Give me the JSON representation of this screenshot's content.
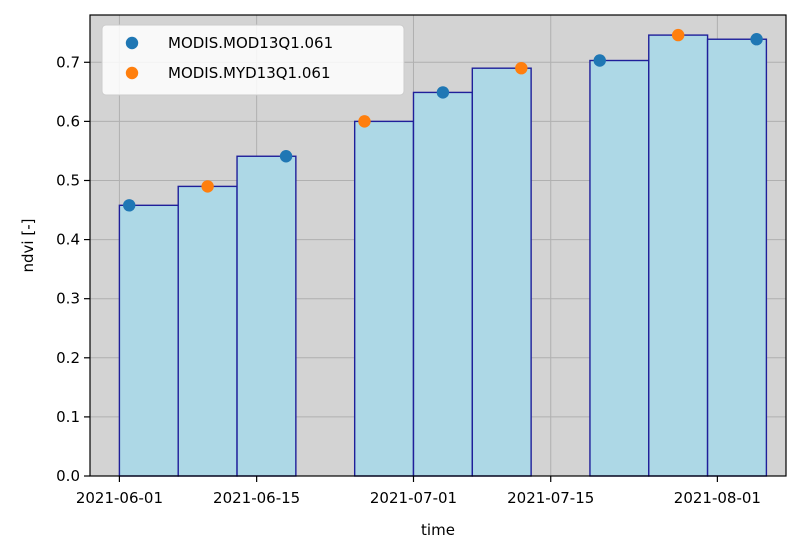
{
  "chart_data": {
    "type": "bar",
    "title": "",
    "xlabel": "time",
    "ylabel": "ndvi [-]",
    "ylim": [
      0.0,
      0.78
    ],
    "xlim": [
      "2021-05-29",
      "2021-08-08"
    ],
    "yticks": [
      0.0,
      0.1,
      0.2,
      0.3,
      0.4,
      0.5,
      0.6,
      0.7
    ],
    "ytick_labels": [
      "0.0",
      "0.1",
      "0.2",
      "0.3",
      "0.4",
      "0.5",
      "0.6",
      "0.7"
    ],
    "xticks": [
      "2021-06-01",
      "2021-06-15",
      "2021-07-01",
      "2021-07-15",
      "2021-08-01"
    ],
    "xtick_labels": [
      "2021-06-01",
      "2021-06-15",
      "2021-07-01",
      "2021-07-15",
      "2021-08-01"
    ],
    "grid": true,
    "legend_position": "top-left",
    "background_color": "#d3d3d3",
    "bars": {
      "fill": "#add8e6",
      "edge": "#1f1f9a",
      "items": [
        {
          "start": "2021-06-01",
          "end": "2021-06-07",
          "value": 0.458
        },
        {
          "start": "2021-06-07",
          "end": "2021-06-13",
          "value": 0.49
        },
        {
          "start": "2021-06-13",
          "end": "2021-06-19",
          "value": 0.541
        },
        {
          "start": "2021-06-25",
          "end": "2021-07-01",
          "value": 0.6
        },
        {
          "start": "2021-07-01",
          "end": "2021-07-07",
          "value": 0.649
        },
        {
          "start": "2021-07-07",
          "end": "2021-07-13",
          "value": 0.69
        },
        {
          "start": "2021-07-19",
          "end": "2021-07-25",
          "value": 0.703
        },
        {
          "start": "2021-07-25",
          "end": "2021-07-31",
          "value": 0.746
        },
        {
          "start": "2021-07-31",
          "end": "2021-08-06",
          "value": 0.739
        }
      ]
    },
    "series": [
      {
        "name": "MODIS.MOD13Q1.061",
        "color": "#1f77b4",
        "points": [
          {
            "x": "2021-06-02",
            "y": 0.458
          },
          {
            "x": "2021-06-18",
            "y": 0.541
          },
          {
            "x": "2021-07-04",
            "y": 0.649
          },
          {
            "x": "2021-07-20",
            "y": 0.703
          },
          {
            "x": "2021-08-05",
            "y": 0.739
          }
        ]
      },
      {
        "name": "MODIS.MYD13Q1.061",
        "color": "#ff7f0e",
        "points": [
          {
            "x": "2021-06-10",
            "y": 0.49
          },
          {
            "x": "2021-06-26",
            "y": 0.6
          },
          {
            "x": "2021-07-12",
            "y": 0.69
          },
          {
            "x": "2021-07-28",
            "y": 0.746
          }
        ]
      }
    ]
  }
}
